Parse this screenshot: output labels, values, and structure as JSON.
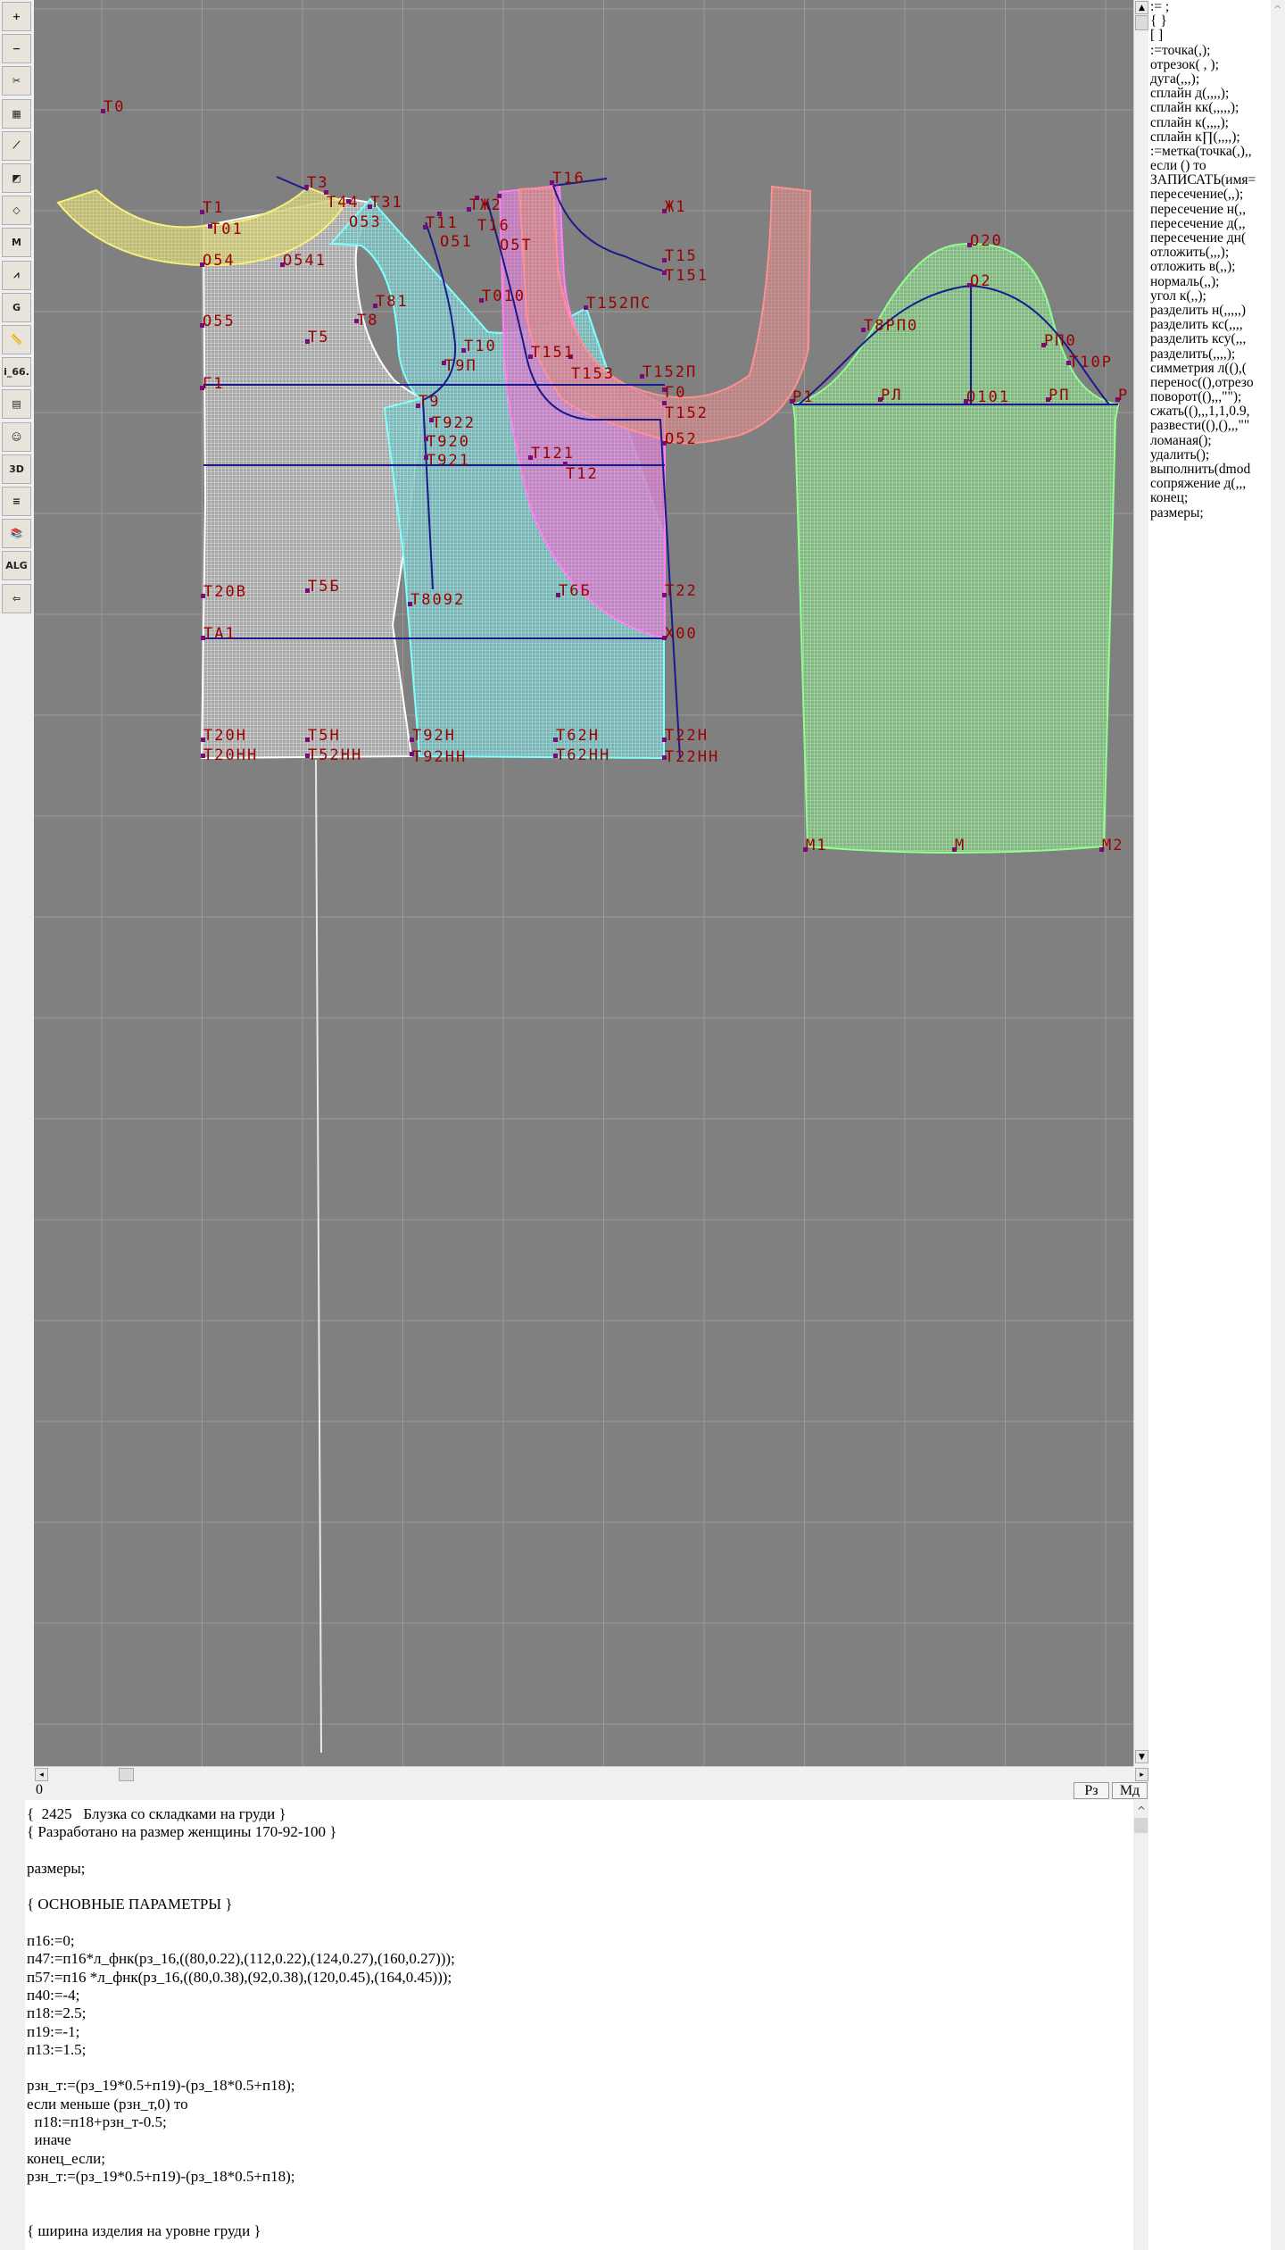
{
  "toolbar": {
    "icons": [
      "zoom-in-icon",
      "zoom-out-icon",
      "pattern-pieces-icon",
      "grid-icon",
      "segment-icon",
      "layout-icon",
      "piece-outline-icon",
      "model-m-icon",
      "compass-icon",
      "grading-g-icon",
      "ruler-icon",
      "i66-icon",
      "table-icon",
      "avatar-icon",
      "3d-icon",
      "list-icon",
      "library-icon",
      "alg-icon",
      "exit-icon"
    ],
    "glyphs": [
      "+",
      "−",
      "✂",
      "▦",
      "⟋",
      "◩",
      "◇",
      "M",
      "⩘",
      "G",
      "📏",
      "i_66.",
      "▤",
      "☺",
      "3D",
      "≡",
      "📚",
      "ALG",
      "⇦"
    ]
  },
  "canvas": {
    "colors": {
      "background": "#808080",
      "grid": "#9a9a9a",
      "label": "#9a0000",
      "construction_line": "#1a1a8c",
      "point": "#7a0a7a"
    },
    "labels": [
      "Т0",
      "Т3",
      "Т44",
      "О53",
      "Т31",
      "Т1",
      "Т01",
      "О54",
      "О541",
      "О55",
      "Т81",
      "Т8",
      "Т5",
      "Г1",
      "Т9",
      "Т922",
      "Т920",
      "Т921",
      "Т11",
      "О51",
      "ТЖ2",
      "Т16",
      "О5Т",
      "Т16",
      "Ж1",
      "Т15",
      "Т151",
      "Т010",
      "Т152ПС",
      "Т10",
      "Т9П",
      "Т151",
      "Т153",
      "Т152П",
      "Г0",
      "Т152",
      "О52",
      "Т121",
      "Т12",
      "Т20В",
      "Т5Б",
      "Т8092",
      "Т6Б",
      "Т22",
      "ТА1",
      "Х00",
      "Т20Н",
      "Т20НН",
      "Т5Н",
      "Т52НН",
      "Т92Н",
      "Т92НН",
      "Т62Н",
      "Т62НН",
      "Т22Н",
      "Т22НН",
      "О20",
      "О2",
      "Т8РП0",
      "РП0",
      "Т10Р",
      "Р1",
      "РЛ",
      "О101",
      "РП",
      "Р",
      "М1",
      "М",
      "М2"
    ]
  },
  "commands": [
    ":= ;",
    "{  }",
    "[  ]",
    ":=точка(,);",
    "отрезок( , );",
    "дуга(,,,);",
    "сплайн  д(,,,,);",
    "сплайн  кк(,,,,,);",
    "сплайн  к(,,,,);",
    "сплайн  к∏(,,,,);",
    ":=метка(точка(,),,",
    "если () то",
    "ЗАПИСАТЬ(имя=",
    "пересечение(,,);",
    "пересечение  н(,,",
    "пересечение  д(,,",
    "пересечение  дн(",
    "отложить(,,,);",
    "отложить  в(,,);",
    "нормаль(,,);",
    "угол  к(,,);",
    "разделить  н(,,,,,)",
    "разделить  кс(,,,,",
    "разделить  ксу(,,,",
    "разделить(,,,,);",
    "симметрия  л((),(",
    "перенос((),отрезо",
    "поворот((),,,\"\");",
    "сжать((),,,1,1,0.9,",
    "развести((),(),,,\"\"",
    "ломаная();",
    "удалить();",
    "выполнить(dmod",
    "сопряжение  д(,,,",
    "конец;",
    "размеры;"
  ],
  "status": {
    "position": "0",
    "btn_rz": "Рз",
    "btn_md": "Мд"
  },
  "editor": {
    "lines": [
      "{  2425   Блузка со складками на груди }",
      "{ Разработано на размер женщины 170-92-100 }",
      "",
      "размеры;",
      "",
      "{ ОСНОВНЫЕ ПАРАМЕТРЫ }",
      "",
      "п16:=0;",
      "п47:=п16*л_фнк(рз_16,((80,0.22),(112,0.22),(124,0.27),(160,0.27)));",
      "п57:=п16 *л_фнк(рз_16,((80,0.38),(92,0.38),(120,0.45),(164,0.45)));",
      "п40:=-4;",
      "п18:=2.5;",
      "п19:=-1;",
      "п13:=1.5;",
      "",
      "рзн_т:=(рз_19*0.5+п19)-(рз_18*0.5+п18);",
      "если меньше (рзн_т,0) то",
      "  п18:=п18+рзн_т-0.5;",
      "  иначе",
      "конец_если;",
      "рзн_т:=(рз_19*0.5+п19)-(рз_18*0.5+п18);",
      "",
      "",
      "{ ширина изделия на уровне груди }"
    ]
  }
}
